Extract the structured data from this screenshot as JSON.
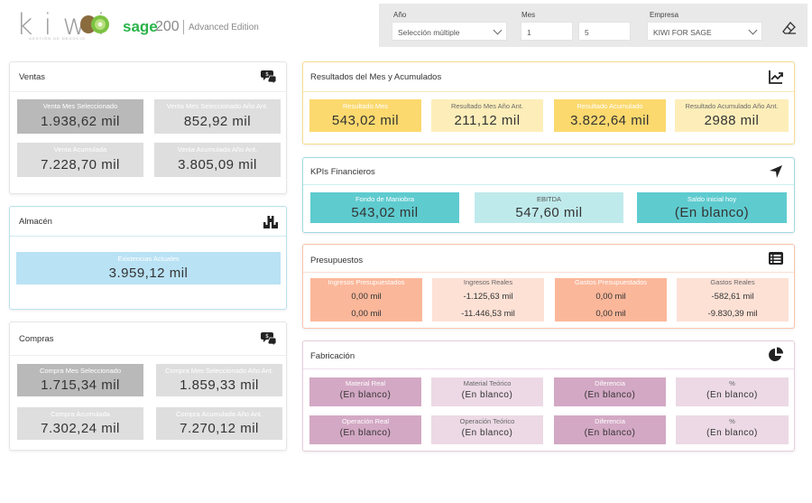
{
  "brand": {
    "logo_text": "kiwi",
    "logo_sub": "GESTIÓN DE NEGOCIO",
    "sage": "sage",
    "sage_num": "200",
    "edition": "Advanced Edition"
  },
  "filters": {
    "year": {
      "label": "Año",
      "value": "Selección múltiple"
    },
    "month": {
      "label": "Mes",
      "from": "1",
      "to": "5"
    },
    "company": {
      "label": "Empresa",
      "value": "KIWI FOR SAGE"
    }
  },
  "ventas": {
    "title": "Ventas",
    "items": [
      {
        "label": "Venta Mes Seleccionado",
        "value": "1.938,62 mil"
      },
      {
        "label": "Venta Mes Seleccionado Año Ant.",
        "value": "852,92 mil"
      },
      {
        "label": "Venta Acumulada",
        "value": "7.228,70 mil"
      },
      {
        "label": "Venta Acumulada Año Ant.",
        "value": "3.805,09 mil"
      }
    ]
  },
  "almacen": {
    "title": "Almacén",
    "items": [
      {
        "label": "Existencias Actuales",
        "value": "3.959,12 mil"
      }
    ]
  },
  "compras": {
    "title": "Compras",
    "items": [
      {
        "label": "Compra Mes Seleccionado",
        "value": "1.715,34 mil"
      },
      {
        "label": "Compra Mes Seleccionado Año Ant.",
        "value": "1.859,33 mil"
      },
      {
        "label": "Compra Acumulada",
        "value": "7.302,24 mil"
      },
      {
        "label": "Compra Acumulada Año Ant.",
        "value": "7.270,12 mil"
      }
    ]
  },
  "resultados": {
    "title": "Resultados del Mes y Acumulados",
    "items": [
      {
        "label": "Resultado Mes",
        "value": "543,02 mil"
      },
      {
        "label": "Resultado Mes Año Ant.",
        "value": "211,12 mil"
      },
      {
        "label": "Resultado Acumulado",
        "value": "3.822,64 mil"
      },
      {
        "label": "Resultado Acumulado Año Ant.",
        "value": "2988 mil"
      }
    ]
  },
  "kpis": {
    "title": "KPIs Financieros",
    "items": [
      {
        "label": "Fondo de Maniobra",
        "value": "543,02 mil"
      },
      {
        "label": "EBITDA",
        "value": "547,60 mil"
      },
      {
        "label": "Saldo inicial hoy",
        "value": "(En blanco)"
      }
    ]
  },
  "presupuestos": {
    "title": "Presupuestos",
    "items": [
      {
        "label": "Ingresos Presupuestados",
        "v1": "0,00 mil",
        "v2": "0,00 mil"
      },
      {
        "label": "Ingresos Reales",
        "v1": "-1.125,63 mil",
        "v2": "-11.446,53 mil"
      },
      {
        "label": "Gastos Presupuestados",
        "v1": "0,00 mil",
        "v2": "0,00 mil"
      },
      {
        "label": "Gastos Reales",
        "v1": "-582,61 mil",
        "v2": "-9.830,39 mil"
      }
    ]
  },
  "fabricacion": {
    "title": "Fabricación",
    "row1": [
      {
        "label": "Material Real",
        "value": "(En blanco)"
      },
      {
        "label": "Material Teórico",
        "value": "(En blanco)"
      },
      {
        "label": "Diferencia",
        "value": "(En blanco)"
      },
      {
        "label": "%",
        "value": "(En blanco)"
      }
    ],
    "row2": [
      {
        "label": "Operación Real",
        "value": "(En blanco)"
      },
      {
        "label": "Operación Teórico",
        "value": "(En blanco)"
      },
      {
        "label": "Diferencia",
        "value": "(En blanco)"
      },
      {
        "label": "%",
        "value": "(En blanco)"
      }
    ]
  },
  "colors": {
    "sage_green": "#2bb34a",
    "yellow": "#fbd96e",
    "teal": "#5ecbcf",
    "orange": "#fbb79a",
    "purple": "#d3a8c4"
  },
  "icons": {
    "ventas": "chat-money-icon",
    "almacen": "boxes-icon",
    "compras": "chat-money-icon",
    "resultados": "trend-chart-icon",
    "kpis": "navigation-arrow-icon",
    "presupuestos": "list-icon",
    "fabricacion": "pie-chart-icon",
    "clear": "eraser-icon"
  }
}
